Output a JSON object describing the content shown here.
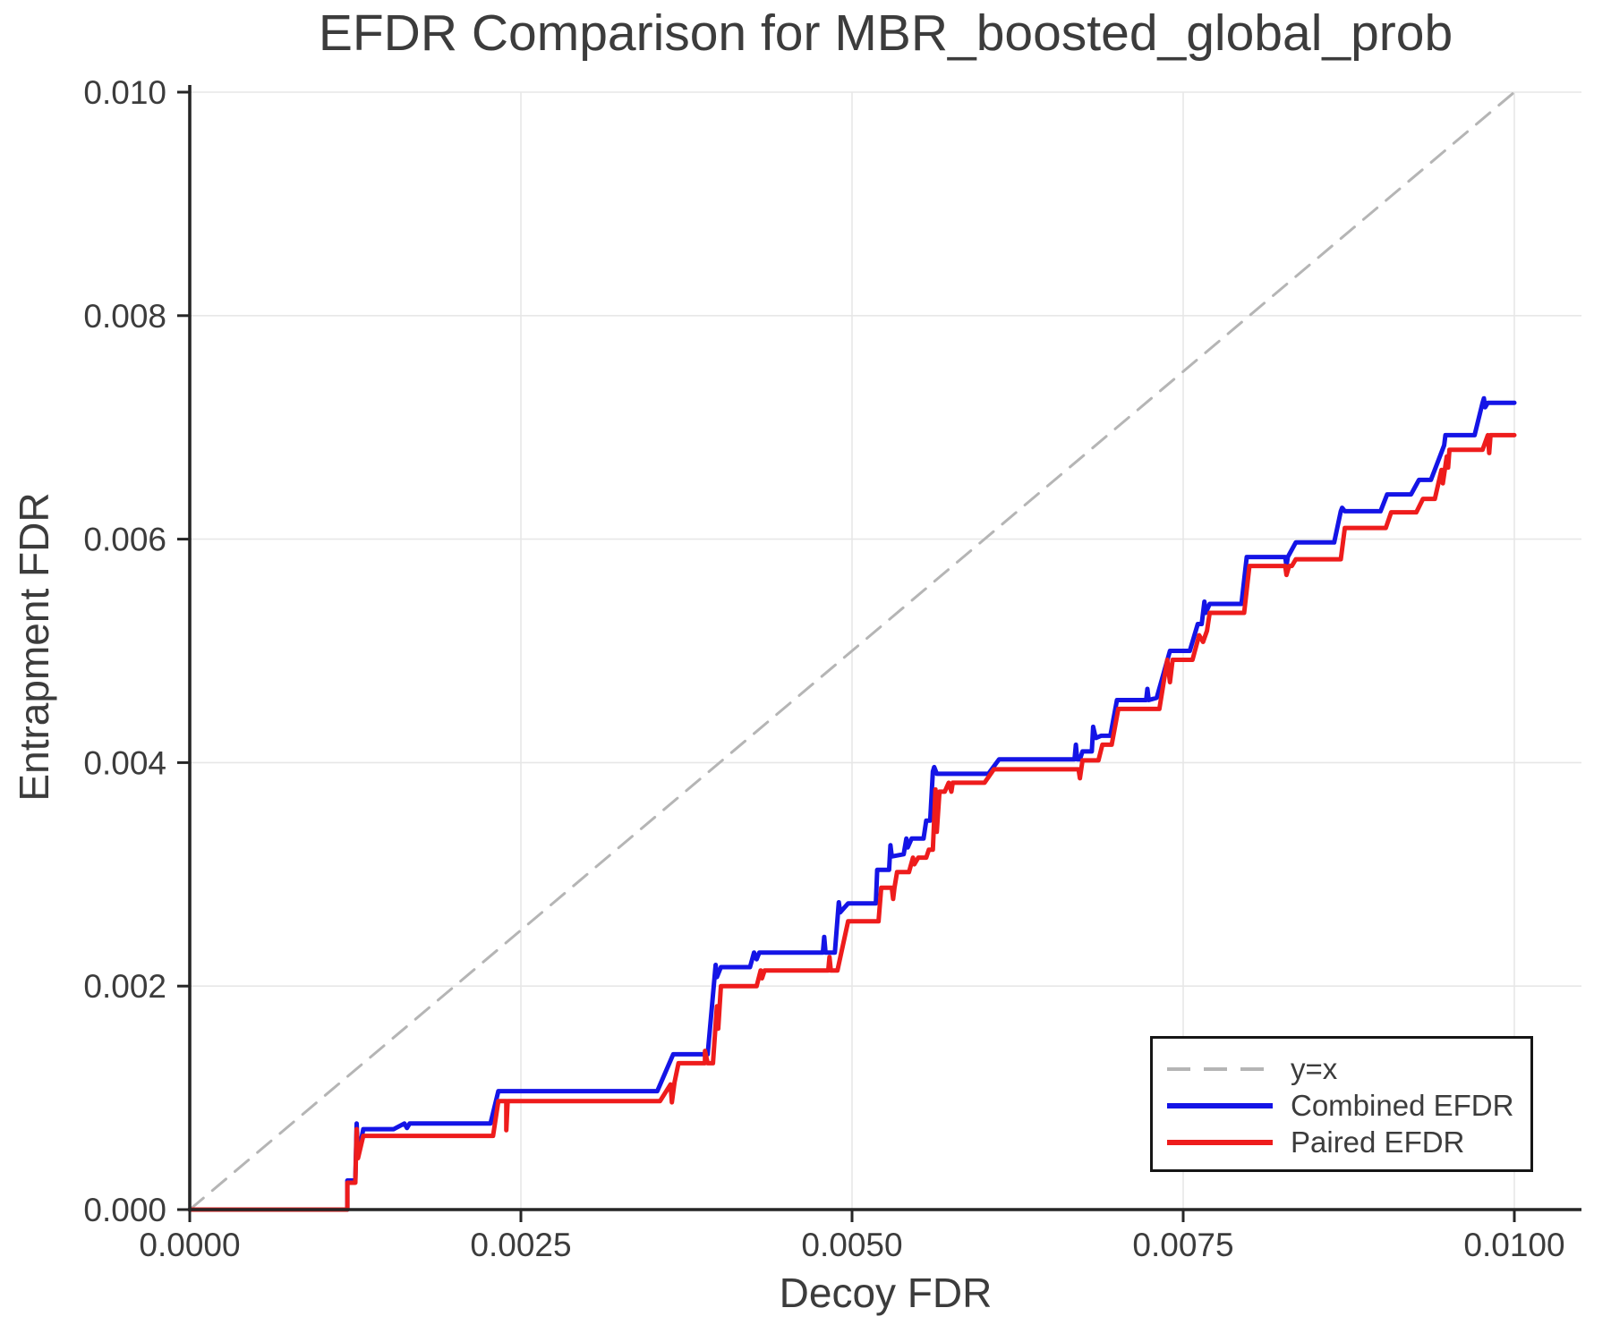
{
  "title": "EFDR Comparison for MBR_boosted_global_prob",
  "chart_data": {
    "type": "line",
    "title": "EFDR Comparison for MBR_boosted_global_prob",
    "xlabel": "Decoy FDR",
    "ylabel": "Entrapment FDR",
    "xlim": [
      0.0,
      0.01
    ],
    "ylim": [
      0.0,
      0.01
    ],
    "grid": true,
    "legend_position": "lower right",
    "colors": {
      "text": "#3c3c3c",
      "spine": "#262626",
      "grid": "#e7e7e7",
      "background": "#ffffff",
      "combined": "#1414e6",
      "paired": "#ee1c1c",
      "reference": "#b5b5b5"
    },
    "x_ticks": {
      "values": [
        0.0,
        0.0025,
        0.005,
        0.0075,
        0.01
      ],
      "labels": [
        "0.0000",
        "0.0025",
        "0.0050",
        "0.0075",
        "0.0100"
      ]
    },
    "y_ticks": {
      "values": [
        0.0,
        0.002,
        0.004,
        0.006,
        0.008,
        0.01
      ],
      "labels": [
        "0.000",
        "0.002",
        "0.004",
        "0.006",
        "0.008",
        "0.010"
      ]
    },
    "legend": {
      "items": [
        {
          "label": "y=x",
          "color": "#b5b5b5",
          "style": "dashed"
        },
        {
          "label": "Combined EFDR",
          "color": "#1414e6",
          "style": "solid"
        },
        {
          "label": "Paired EFDR",
          "color": "#ee1c1c",
          "style": "solid"
        }
      ]
    },
    "series": [
      {
        "name": "y=x",
        "color": "#b5b5b5",
        "style": "dashed",
        "width": 3,
        "points": [
          [
            0.0,
            0.0
          ],
          [
            0.01,
            0.01
          ]
        ]
      },
      {
        "name": "Combined EFDR",
        "color": "#1414e6",
        "style": "solid",
        "width": 5,
        "points": [
          [
            0,
            0
          ],
          [
            0.00119,
            0
          ],
          [
            0.00119,
            0.00026
          ],
          [
            0.00125,
            0.00026
          ],
          [
            0.00126,
            0.00077
          ],
          [
            0.00127,
            0.00048
          ],
          [
            0.00131,
            0.00072
          ],
          [
            0.00154,
            0.00072
          ],
          [
            0.00162,
            0.00077
          ],
          [
            0.00164,
            0.00073
          ],
          [
            0.00166,
            0.00077
          ],
          [
            0.00227,
            0.00077
          ],
          [
            0.00233,
            0.00106
          ],
          [
            0.00353,
            0.00106
          ],
          [
            0.00365,
            0.00139
          ],
          [
            0.00391,
            0.00139
          ],
          [
            0.00397,
            0.00219
          ],
          [
            0.00398,
            0.00208
          ],
          [
            0.00401,
            0.00217
          ],
          [
            0.00423,
            0.00217
          ],
          [
            0.00426,
            0.0023
          ],
          [
            0.00428,
            0.00224
          ],
          [
            0.0043,
            0.0023
          ],
          [
            0.00478,
            0.0023
          ],
          [
            0.00479,
            0.00244
          ],
          [
            0.0048,
            0.0023
          ],
          [
            0.00487,
            0.0023
          ],
          [
            0.0049,
            0.00275
          ],
          [
            0.00491,
            0.00266
          ],
          [
            0.00497,
            0.00274
          ],
          [
            0.00518,
            0.00274
          ],
          [
            0.00519,
            0.00304
          ],
          [
            0.00528,
            0.00304
          ],
          [
            0.00529,
            0.00326
          ],
          [
            0.0053,
            0.00316
          ],
          [
            0.00539,
            0.00318
          ],
          [
            0.00541,
            0.00332
          ],
          [
            0.00542,
            0.00324
          ],
          [
            0.00545,
            0.00332
          ],
          [
            0.00554,
            0.00332
          ],
          [
            0.00556,
            0.00348
          ],
          [
            0.00559,
            0.00348
          ],
          [
            0.00561,
            0.00392
          ],
          [
            0.00562,
            0.00396
          ],
          [
            0.00564,
            0.0039
          ],
          [
            0.00603,
            0.0039
          ],
          [
            0.00611,
            0.00403
          ],
          [
            0.00668,
            0.00403
          ],
          [
            0.00669,
            0.00416
          ],
          [
            0.0067,
            0.00403
          ],
          [
            0.00672,
            0.00403
          ],
          [
            0.00674,
            0.0041
          ],
          [
            0.00681,
            0.0041
          ],
          [
            0.00682,
            0.00432
          ],
          [
            0.00684,
            0.00422
          ],
          [
            0.00688,
            0.00424
          ],
          [
            0.00695,
            0.00424
          ],
          [
            0.007,
            0.00456
          ],
          [
            0.00722,
            0.00456
          ],
          [
            0.00723,
            0.00466
          ],
          [
            0.00724,
            0.00456
          ],
          [
            0.0073,
            0.00458
          ],
          [
            0.0074,
            0.005
          ],
          [
            0.00755,
            0.005
          ],
          [
            0.00761,
            0.00524
          ],
          [
            0.00764,
            0.00524
          ],
          [
            0.00766,
            0.00544
          ],
          [
            0.00767,
            0.00534
          ],
          [
            0.0077,
            0.00542
          ],
          [
            0.00794,
            0.00542
          ],
          [
            0.00798,
            0.00584
          ],
          [
            0.00827,
            0.00584
          ],
          [
            0.00828,
            0.00576
          ],
          [
            0.00829,
            0.00584
          ],
          [
            0.00835,
            0.00597
          ],
          [
            0.00864,
            0.00597
          ],
          [
            0.00869,
            0.00625
          ],
          [
            0.0087,
            0.00628
          ],
          [
            0.00872,
            0.00625
          ],
          [
            0.00899,
            0.00625
          ],
          [
            0.00904,
            0.0064
          ],
          [
            0.00922,
            0.0064
          ],
          [
            0.00928,
            0.00653
          ],
          [
            0.00937,
            0.00653
          ],
          [
            0.00947,
            0.00684
          ],
          [
            0.00948,
            0.00693
          ],
          [
            0.0097,
            0.00693
          ],
          [
            0.00976,
            0.00722
          ],
          [
            0.00977,
            0.00726
          ],
          [
            0.00978,
            0.00718
          ],
          [
            0.0098,
            0.00722
          ],
          [
            0.01,
            0.00722
          ]
        ]
      },
      {
        "name": "Paired EFDR",
        "color": "#ee1c1c",
        "style": "solid",
        "width": 5,
        "points": [
          [
            0,
            0
          ],
          [
            0.00119,
            0
          ],
          [
            0.00119,
            0.00024
          ],
          [
            0.00125,
            0.00024
          ],
          [
            0.00126,
            0.00072
          ],
          [
            0.00127,
            0.00046
          ],
          [
            0.00131,
            0.00066
          ],
          [
            0.00229,
            0.00066
          ],
          [
            0.00233,
            0.00097
          ],
          [
            0.00239,
            0.00097
          ],
          [
            0.00239,
            0.00071
          ],
          [
            0.0024,
            0.00097
          ],
          [
            0.00355,
            0.00097
          ],
          [
            0.00363,
            0.00112
          ],
          [
            0.00364,
            0.00096
          ],
          [
            0.00366,
            0.00114
          ],
          [
            0.00369,
            0.00131
          ],
          [
            0.00389,
            0.00131
          ],
          [
            0.00389,
            0.00142
          ],
          [
            0.00391,
            0.00131
          ],
          [
            0.00395,
            0.00131
          ],
          [
            0.00398,
            0.00182
          ],
          [
            0.00399,
            0.00162
          ],
          [
            0.00401,
            0.002
          ],
          [
            0.00428,
            0.002
          ],
          [
            0.00431,
            0.00214
          ],
          [
            0.00432,
            0.00207
          ],
          [
            0.00434,
            0.00214
          ],
          [
            0.00482,
            0.00214
          ],
          [
            0.00483,
            0.00226
          ],
          [
            0.00484,
            0.00214
          ],
          [
            0.00489,
            0.00214
          ],
          [
            0.00497,
            0.00258
          ],
          [
            0.0052,
            0.00258
          ],
          [
            0.00522,
            0.00288
          ],
          [
            0.0053,
            0.00288
          ],
          [
            0.00531,
            0.00278
          ],
          [
            0.00532,
            0.00288
          ],
          [
            0.00534,
            0.00302
          ],
          [
            0.00543,
            0.00302
          ],
          [
            0.00546,
            0.00315
          ],
          [
            0.00547,
            0.00309
          ],
          [
            0.0055,
            0.00315
          ],
          [
            0.00556,
            0.00315
          ],
          [
            0.00558,
            0.00322
          ],
          [
            0.00561,
            0.00322
          ],
          [
            0.00563,
            0.00376
          ],
          [
            0.00564,
            0.00338
          ],
          [
            0.00566,
            0.00374
          ],
          [
            0.0057,
            0.00374
          ],
          [
            0.00573,
            0.00382
          ],
          [
            0.00575,
            0.00374
          ],
          [
            0.00576,
            0.00382
          ],
          [
            0.006,
            0.00382
          ],
          [
            0.00607,
            0.00394
          ],
          [
            0.00671,
            0.00394
          ],
          [
            0.00672,
            0.00386
          ],
          [
            0.00674,
            0.00402
          ],
          [
            0.00686,
            0.00402
          ],
          [
            0.00689,
            0.00416
          ],
          [
            0.00696,
            0.00416
          ],
          [
            0.00701,
            0.00448
          ],
          [
            0.00732,
            0.00448
          ],
          [
            0.00738,
            0.00492
          ],
          [
            0.0074,
            0.00472
          ],
          [
            0.00742,
            0.00492
          ],
          [
            0.00757,
            0.00492
          ],
          [
            0.00762,
            0.00514
          ],
          [
            0.00765,
            0.00508
          ],
          [
            0.00768,
            0.00518
          ],
          [
            0.0077,
            0.00534
          ],
          [
            0.00796,
            0.00534
          ],
          [
            0.008,
            0.00576
          ],
          [
            0.00827,
            0.00576
          ],
          [
            0.00828,
            0.00568
          ],
          [
            0.0083,
            0.00576
          ],
          [
            0.00832,
            0.00576
          ],
          [
            0.00835,
            0.00582
          ],
          [
            0.00869,
            0.00582
          ],
          [
            0.00872,
            0.0061
          ],
          [
            0.00903,
            0.0061
          ],
          [
            0.00907,
            0.00624
          ],
          [
            0.00926,
            0.00624
          ],
          [
            0.00931,
            0.00636
          ],
          [
            0.0094,
            0.00636
          ],
          [
            0.00945,
            0.00662
          ],
          [
            0.00946,
            0.0065
          ],
          [
            0.00949,
            0.00674
          ],
          [
            0.0095,
            0.00664
          ],
          [
            0.00951,
            0.0068
          ],
          [
            0.00976,
            0.0068
          ],
          [
            0.0098,
            0.00693
          ],
          [
            0.00981,
            0.00677
          ],
          [
            0.00982,
            0.00693
          ],
          [
            0.01,
            0.00693
          ]
        ]
      }
    ]
  }
}
